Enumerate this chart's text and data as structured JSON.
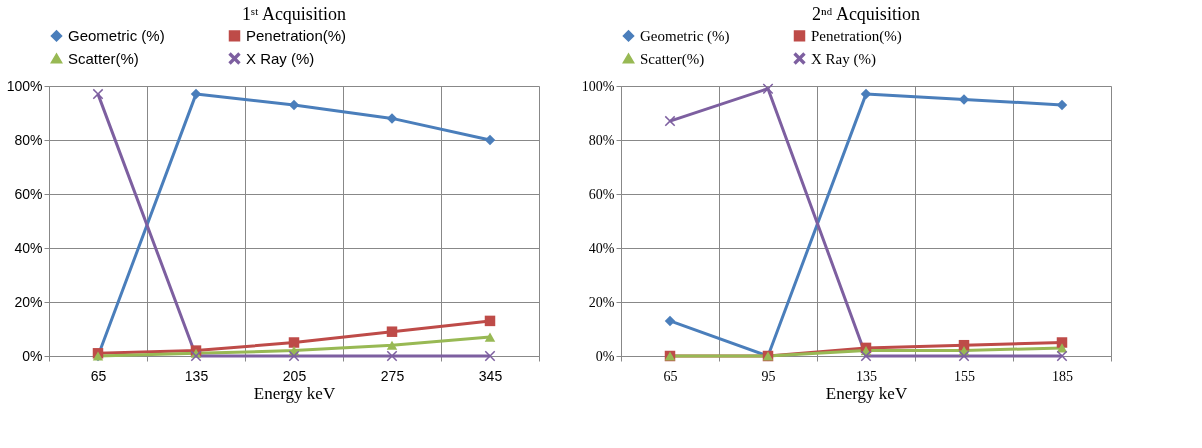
{
  "chart_data": [
    {
      "type": "line",
      "title": "1ˢᵗ Acquisition",
      "xlabel": "Energy keV",
      "categories": [
        "65",
        "135",
        "205",
        "275",
        "345"
      ],
      "ylim": [
        0,
        100
      ],
      "yticks": [
        {
          "value": 0,
          "label": "0%"
        },
        {
          "value": 20,
          "label": "20%"
        },
        {
          "value": 40,
          "label": "40%"
        },
        {
          "value": 60,
          "label": "60%"
        },
        {
          "value": 80,
          "label": "80%"
        },
        {
          "value": 100,
          "label": "100%"
        }
      ],
      "grid": true,
      "legend": "top",
      "series": [
        {
          "name": "Geometric (%)",
          "color": "#4a7ebb",
          "marker": "diamond",
          "values": [
            0,
            97,
            93,
            88,
            80
          ]
        },
        {
          "name": "Penetration(%)",
          "color": "#be4b48",
          "marker": "square",
          "values": [
            1,
            2,
            5,
            9,
            13
          ]
        },
        {
          "name": "Scatter(%)",
          "color": "#98b954",
          "marker": "triangle",
          "values": [
            0,
            1,
            2,
            4,
            7
          ]
        },
        {
          "name": "X Ray (%)",
          "color": "#7d5fa0",
          "marker": "cross",
          "values": [
            97,
            0,
            0,
            0,
            0
          ]
        }
      ]
    },
    {
      "type": "line",
      "title": "2ⁿᵈ Acquisition",
      "xlabel": "Energy keV",
      "categories": [
        "65",
        "95",
        "135",
        "155",
        "185"
      ],
      "ylim": [
        0,
        100
      ],
      "yticks": [
        {
          "value": 0,
          "label": "0%"
        },
        {
          "value": 20,
          "label": "20%"
        },
        {
          "value": 40,
          "label": "40%"
        },
        {
          "value": 60,
          "label": "60%"
        },
        {
          "value": 80,
          "label": "80%"
        },
        {
          "value": 100,
          "label": "100%"
        }
      ],
      "grid": true,
      "legend": "top",
      "series": [
        {
          "name": "Geometric (%)",
          "color": "#4a7ebb",
          "marker": "diamond",
          "values": [
            13,
            0,
            97,
            95,
            93
          ]
        },
        {
          "name": "Penetration(%)",
          "color": "#be4b48",
          "marker": "square",
          "values": [
            0,
            0,
            3,
            4,
            5
          ]
        },
        {
          "name": "Scatter(%)",
          "color": "#98b954",
          "marker": "triangle",
          "values": [
            0,
            0,
            2,
            2,
            3
          ]
        },
        {
          "name": "X Ray (%)",
          "color": "#7d5fa0",
          "marker": "cross",
          "values": [
            87,
            99,
            0,
            0,
            0
          ]
        }
      ]
    }
  ]
}
